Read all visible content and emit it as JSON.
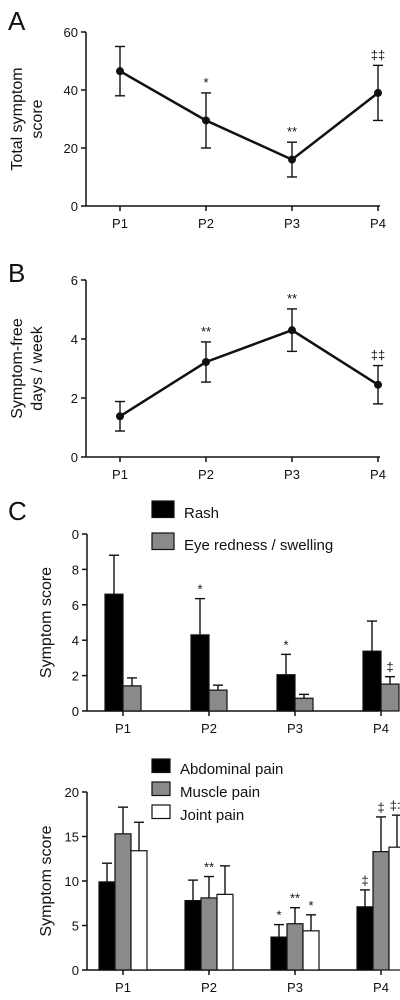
{
  "panels": [
    {
      "letter": "A"
    },
    {
      "letter": "B"
    },
    {
      "letter": "C"
    }
  ],
  "chart_data": [
    {
      "type": "line",
      "panel": "A",
      "ylabel": [
        "Total symptom",
        "score"
      ],
      "categories": [
        "P1",
        "P2",
        "P3",
        "P4"
      ],
      "values": [
        46.5,
        29.5,
        16,
        39
      ],
      "err": [
        8.5,
        9.5,
        6,
        9.5
      ],
      "sig": [
        "",
        "*",
        "**",
        "‡‡"
      ],
      "ylim": [
        0,
        60
      ],
      "yticks": [
        0,
        20,
        40,
        60
      ]
    },
    {
      "type": "line",
      "panel": "B",
      "ylabel": [
        "Symptom-free",
        "days / week"
      ],
      "categories": [
        "P1",
        "P2",
        "P3",
        "P4"
      ],
      "values": [
        1.38,
        3.22,
        4.3,
        2.45
      ],
      "err": [
        0.5,
        0.68,
        0.72,
        0.65
      ],
      "sig": [
        "",
        "**",
        "**",
        "‡‡"
      ],
      "ylim": [
        0,
        6
      ],
      "yticks": [
        0,
        2,
        4,
        6
      ]
    },
    {
      "type": "bar",
      "panel": "C",
      "ylabel": [
        "Symptom score"
      ],
      "categories": [
        "P1",
        "P2",
        "P3",
        "P4"
      ],
      "ylim": [
        0,
        10
      ],
      "yticks": [
        0,
        2,
        4,
        6,
        8
      ],
      "ytick_labels": [
        "0",
        "2",
        "4",
        "6",
        "8"
      ],
      "top_tick_label": "0",
      "series": [
        {
          "name": "Rash",
          "color": "#000000",
          "values": [
            6.6,
            4.3,
            2.05,
            3.38
          ],
          "err": [
            2.2,
            2.05,
            1.15,
            1.7
          ],
          "sig": [
            "",
            "*",
            "*",
            ""
          ]
        },
        {
          "name": "Eye redness / swelling",
          "color": "#8a8a8a",
          "values": [
            1.42,
            1.18,
            0.72,
            1.52
          ],
          "err": [
            0.45,
            0.28,
            0.22,
            0.42
          ],
          "sig": [
            "",
            "",
            "",
            "‡"
          ]
        }
      ]
    },
    {
      "type": "bar",
      "panel": "C",
      "ylabel": [
        "Symptom score"
      ],
      "categories": [
        "P1",
        "P2",
        "P3",
        "P4"
      ],
      "ylim": [
        0,
        20
      ],
      "yticks": [
        0,
        5,
        10,
        15,
        20
      ],
      "series": [
        {
          "name": "Abdominal pain",
          "color": "#000000",
          "values": [
            9.9,
            7.8,
            3.7,
            7.1
          ],
          "err": [
            2.1,
            2.3,
            1.4,
            1.9
          ],
          "sig": [
            "",
            "",
            "*",
            "‡"
          ]
        },
        {
          "name": "Muscle pain",
          "color": "#8a8a8a",
          "values": [
            15.3,
            8.1,
            5.2,
            13.3
          ],
          "err": [
            3.0,
            2.4,
            1.8,
            3.9
          ],
          "sig": [
            "",
            "**",
            "**",
            "‡"
          ]
        },
        {
          "name": "Joint pain",
          "color": "#ffffff",
          "values": [
            13.4,
            8.5,
            4.4,
            13.8
          ],
          "err": [
            3.2,
            3.2,
            1.8,
            3.6
          ],
          "sig": [
            "",
            "",
            "*",
            "‡‡"
          ]
        }
      ]
    }
  ]
}
